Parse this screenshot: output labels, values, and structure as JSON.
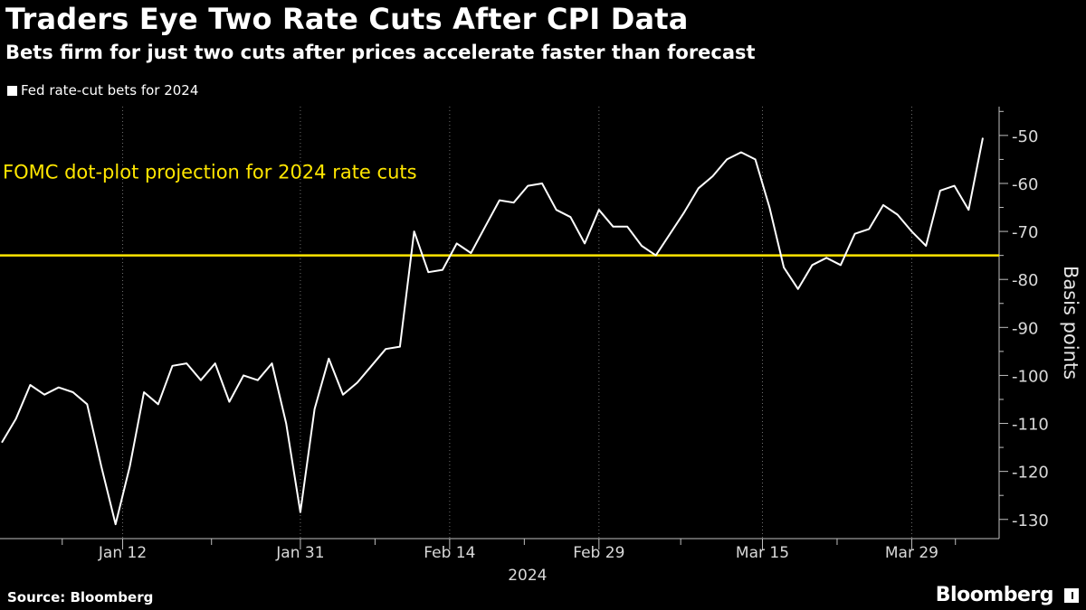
{
  "chart_data": {
    "type": "line",
    "title": "Traders Eye Two Rate Cuts After CPI Data",
    "subtitle": "Bets firm for just two cuts after prices accelerate faster than forecast",
    "legend": [
      "Fed rate-cut bets for 2024"
    ],
    "ylabel": "Basis points",
    "xlabel": "2024",
    "ylim": [
      -134,
      -44
    ],
    "yticks": [
      -50,
      -60,
      -70,
      -80,
      -90,
      -100,
      -110,
      -120,
      -130
    ],
    "ytick_labels": [
      "-50",
      "-60",
      "-70",
      "-80",
      "-90",
      "-100",
      "-110",
      "-120",
      "-130"
    ],
    "xticks": [
      {
        "label": "Jan 12",
        "index": 8.5
      },
      {
        "label": "Jan 31",
        "index": 21
      },
      {
        "label": "Feb 14",
        "index": 31.5
      },
      {
        "label": "Feb 29",
        "index": 42
      },
      {
        "label": "Mar 15",
        "index": 53.5
      },
      {
        "label": "Mar 29",
        "index": 64
      }
    ],
    "series": [
      {
        "name": "Fed rate-cut bets for 2024",
        "color": "#ffffff",
        "values": [
          -114,
          -109,
          -102,
          -104,
          -102.5,
          -103.5,
          -106,
          -119,
          -131,
          -119,
          -103.5,
          -106,
          -98,
          -97.5,
          -101,
          -97.5,
          -105.5,
          -100,
          -101,
          -97.5,
          -110,
          -128.5,
          -107,
          -96.5,
          -104,
          -101.5,
          -98,
          -94.5,
          -94,
          -70,
          -78.5,
          -78,
          -72.5,
          -74.5,
          -69,
          -63.5,
          -64,
          -60.5,
          -60,
          -65.5,
          -67,
          -72.5,
          -65.5,
          -69,
          -69,
          -73,
          -75,
          -70.5,
          -66,
          -61,
          -58.5,
          -55,
          -53.5,
          -55,
          -65,
          -77.5,
          -82,
          -77,
          -75.5,
          -77,
          -70.5,
          -69.5,
          -64.5,
          -66.5,
          -70,
          -73,
          -61.5,
          -60.5,
          -65.5,
          -50.5
        ]
      }
    ],
    "reference_line": {
      "label": "FOMC dot-plot projection for 2024 rate cuts",
      "value": -75,
      "color": "#ffe600"
    }
  },
  "footer": {
    "source": "Source: Bloomberg",
    "brand": "Bloomberg"
  }
}
